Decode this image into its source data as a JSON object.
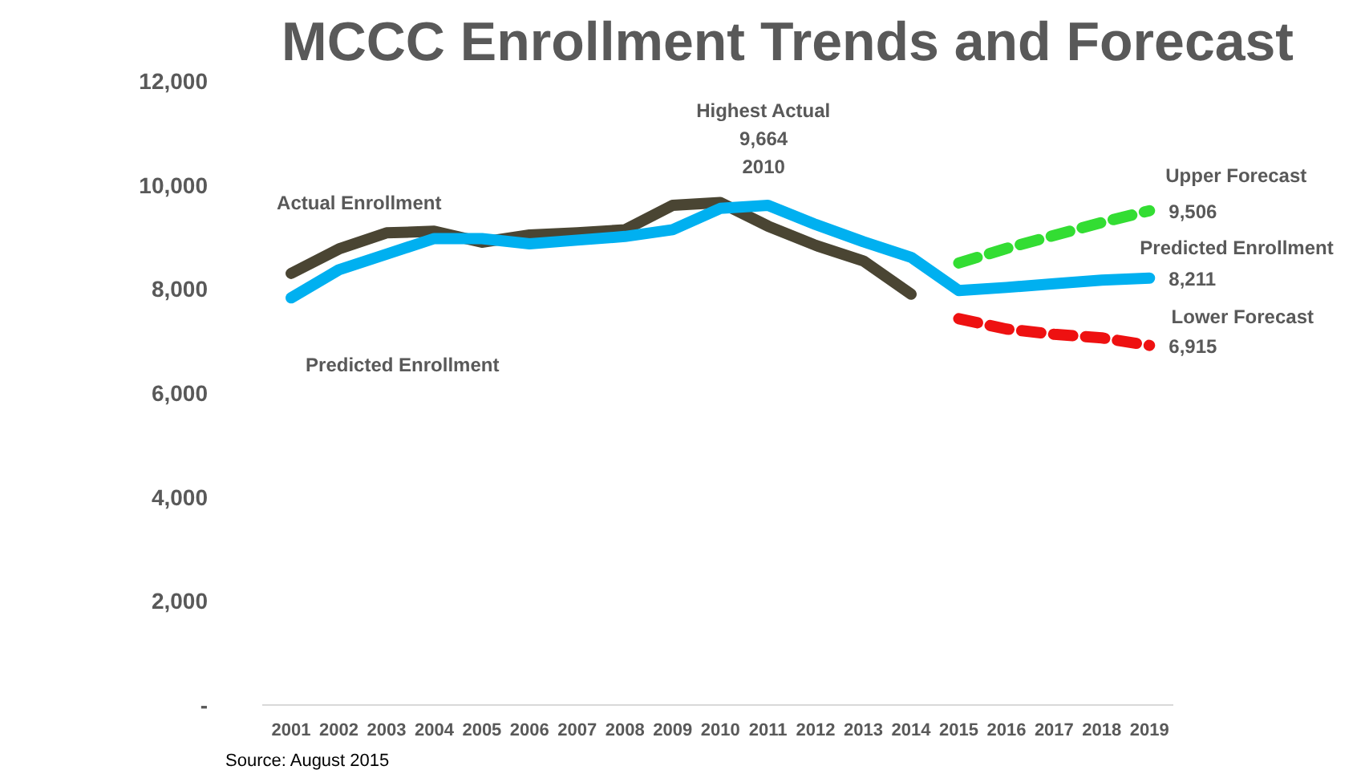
{
  "chart_data": {
    "type": "line",
    "title": "MCCC Enrollment Trends and Forecast",
    "categories": [
      "2001",
      "2002",
      "2003",
      "2004",
      "2005",
      "2006",
      "2007",
      "2008",
      "2009",
      "2010",
      "2011",
      "2012",
      "2013",
      "2014",
      "2015",
      "2016",
      "2017",
      "2018",
      "2019"
    ],
    "series": [
      {
        "name": "Actual Enrollment",
        "color": "#4a4533",
        "line_style": "solid",
        "values": [
          8300,
          8770,
          9080,
          9110,
          8900,
          9040,
          9080,
          9140,
          9610,
          9664,
          9210,
          8840,
          8540,
          7900,
          null,
          null,
          null,
          null,
          null
        ]
      },
      {
        "name": "Predicted Enrollment",
        "color": "#00b0f0",
        "line_style": "solid",
        "values": [
          7830,
          8370,
          8670,
          8970,
          8970,
          8870,
          8940,
          9010,
          9140,
          9550,
          9610,
          9240,
          8910,
          8610,
          7970,
          8030,
          8100,
          8170,
          8211
        ]
      },
      {
        "name": "Upper Forecast",
        "color": "#33dd33",
        "line_style": "dashed",
        "values": [
          null,
          null,
          null,
          null,
          null,
          null,
          null,
          null,
          null,
          null,
          null,
          null,
          null,
          null,
          8500,
          8780,
          9030,
          9280,
          9506
        ]
      },
      {
        "name": "Lower Forecast",
        "color": "#ee1111",
        "line_style": "dashed",
        "values": [
          null,
          null,
          null,
          null,
          null,
          null,
          null,
          null,
          null,
          null,
          null,
          null,
          null,
          null,
          7430,
          7230,
          7130,
          7060,
          6915
        ]
      }
    ],
    "ylim": [
      0,
      12000
    ],
    "yticks": [
      {
        "value": 0,
        "label": "-"
      },
      {
        "value": 2000,
        "label": "2,000"
      },
      {
        "value": 4000,
        "label": "4,000"
      },
      {
        "value": 6000,
        "label": "6,000"
      },
      {
        "value": 8000,
        "label": "8,000"
      },
      {
        "value": 10000,
        "label": "10,000"
      },
      {
        "value": 12000,
        "label": "12,000"
      }
    ],
    "grid": false,
    "legend": false,
    "annotations": [
      {
        "text": "Highest Actual\n9,664\n2010",
        "x": "2010",
        "y": 9664
      },
      {
        "text": "9,506",
        "x": "2019",
        "y": 9506
      },
      {
        "text": "8,211",
        "x": "2019",
        "y": 8211
      },
      {
        "text": "6,915",
        "x": "2019",
        "y": 6915
      },
      "Source: August 2015"
    ]
  }
}
